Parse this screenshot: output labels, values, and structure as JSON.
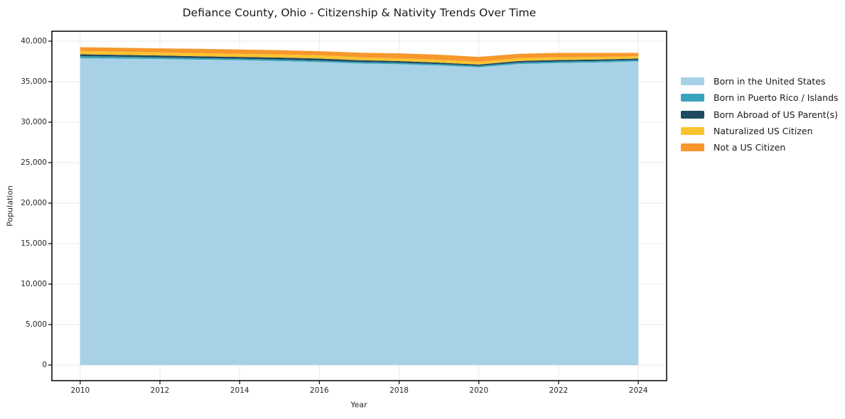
{
  "figure": {
    "background": "#ffffff",
    "text_color": "#262626",
    "grid_color": "#e9e9e9",
    "spine_color": "#000000"
  },
  "chart_data": {
    "type": "area",
    "stacked": true,
    "title": "Defiance County, Ohio - Citizenship & Nativity Trends Over Time",
    "xlabel": "Year",
    "ylabel": "Population",
    "grid": true,
    "legend_position": "right",
    "x": [
      2010,
      2011,
      2012,
      2013,
      2014,
      2015,
      2016,
      2017,
      2018,
      2019,
      2020,
      2021,
      2022,
      2023,
      2024
    ],
    "series": [
      {
        "name": "Born in the United States",
        "color": "#a7d1e6",
        "values": [
          37900,
          37850,
          37800,
          37720,
          37650,
          37550,
          37420,
          37250,
          37160,
          37000,
          36775,
          37180,
          37300,
          37380,
          37510
        ]
      },
      {
        "name": "Born in Puerto Rico / Islands",
        "color": "#3aa4ba",
        "values": [
          250,
          230,
          200,
          190,
          180,
          180,
          180,
          175,
          170,
          175,
          175,
          180,
          180,
          175,
          170
        ]
      },
      {
        "name": "Born Abroad of US Parent(s)",
        "color": "#204a5e",
        "values": [
          240,
          235,
          235,
          230,
          230,
          250,
          260,
          230,
          210,
          180,
          170,
          200,
          200,
          190,
          180
        ]
      },
      {
        "name": "Naturalized US Citizen",
        "color": "#fcc330",
        "values": [
          400,
          390,
          380,
          380,
          380,
          390,
          400,
          370,
          350,
          350,
          350,
          360,
          350,
          320,
          290
        ]
      },
      {
        "name": "Not a US Citizen",
        "color": "#f7972c",
        "values": [
          470,
          485,
          500,
          540,
          530,
          520,
          500,
          560,
          610,
          630,
          590,
          520,
          530,
          495,
          410
        ]
      }
    ],
    "xlim": [
      2009.29,
      2024.71
    ],
    "ylim": [
      -1930,
      41230
    ],
    "yticks": {
      "values": [
        0,
        5000,
        10000,
        15000,
        20000,
        25000,
        30000,
        35000,
        40000
      ],
      "labels": [
        "0",
        "5,000",
        "10,000",
        "15,000",
        "20,000",
        "25,000",
        "30,000",
        "35,000",
        "40,000"
      ]
    },
    "xticks": {
      "values": [
        2010,
        2012,
        2014,
        2016,
        2018,
        2020,
        2022,
        2024
      ],
      "labels": [
        "2010",
        "2012",
        "2014",
        "2016",
        "2018",
        "2020",
        "2022",
        "2024"
      ]
    }
  }
}
